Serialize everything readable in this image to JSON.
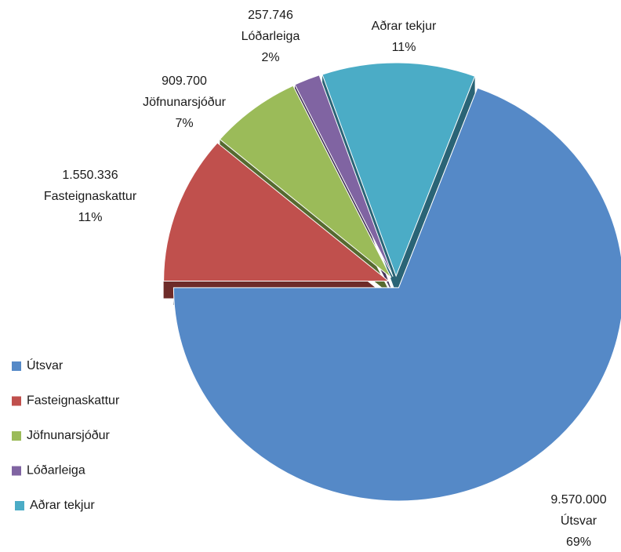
{
  "chart_data": {
    "type": "pie",
    "categories": [
      "Útsvar",
      "Fasteignaskattur",
      "Jöfnunarsjóður",
      "Lóðarleiga",
      "Aðrar tekjur"
    ],
    "values": [
      9570000,
      1550336,
      909700,
      257746,
      1520000
    ],
    "value_labels": [
      "9.570.000",
      "1.550.336",
      "909.700",
      "257.746",
      null
    ],
    "percent_labels": [
      "69%",
      "11%",
      "7%",
      "2%",
      "11%"
    ],
    "colors": [
      "#5589c7",
      "#c0504d",
      "#9bbb59",
      "#8064a2",
      "#4bacc6"
    ],
    "side_colors": [
      "#253a55",
      "#6e2b29",
      "#566a30",
      "#46365a",
      "#2a6476"
    ],
    "legend": "left"
  }
}
